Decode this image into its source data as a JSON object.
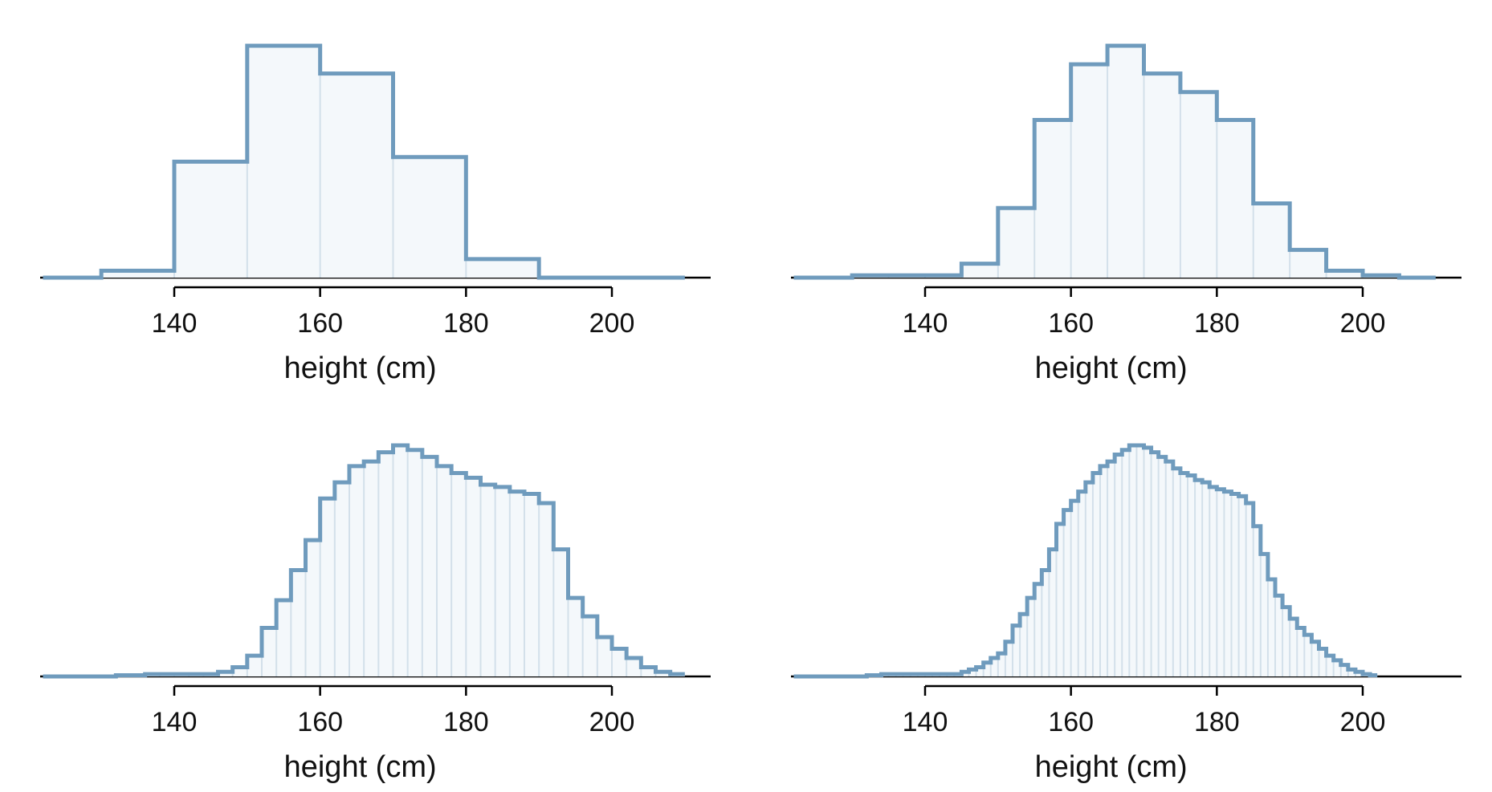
{
  "colors": {
    "outline": "#6f9bbd",
    "fill": "#f4f8fb",
    "bin_divider": "#d3e0ea",
    "axis": "#000000"
  },
  "chart_data": [
    {
      "type": "histogram",
      "xlabel": "height (cm)",
      "xticks": [
        140,
        160,
        180,
        200
      ],
      "xlim": [
        122,
        210
      ],
      "bin_width": 10,
      "bins_start": 120,
      "density_max": 1.0,
      "values": [
        0.0,
        0.03,
        0.5,
        1.0,
        0.88,
        0.52,
        0.08,
        0.0,
        0.0
      ],
      "grid": false,
      "y_axis_shown": false
    },
    {
      "type": "histogram",
      "xlabel": "height (cm)",
      "xticks": [
        140,
        160,
        180,
        200
      ],
      "xlim": [
        122,
        210
      ],
      "bin_width": 5,
      "bins_start": 120,
      "density_max": 1.0,
      "values": [
        0.0,
        0.0,
        0.01,
        0.01,
        0.01,
        0.06,
        0.3,
        0.68,
        0.92,
        1.0,
        0.88,
        0.8,
        0.68,
        0.32,
        0.12,
        0.03,
        0.01,
        0.0
      ],
      "grid": false,
      "y_axis_shown": false
    },
    {
      "type": "histogram",
      "xlabel": "height (cm)",
      "xticks": [
        140,
        160,
        180,
        200
      ],
      "xlim": [
        122,
        210
      ],
      "bin_width": 2,
      "bins_start": 120,
      "density_max": 1.0,
      "values": [
        0.0,
        0.0,
        0.0,
        0.0,
        0.0,
        0.0,
        0.005,
        0.005,
        0.01,
        0.01,
        0.01,
        0.01,
        0.01,
        0.02,
        0.04,
        0.09,
        0.21,
        0.33,
        0.46,
        0.59,
        0.77,
        0.84,
        0.91,
        0.93,
        0.97,
        1.0,
        0.98,
        0.95,
        0.91,
        0.88,
        0.86,
        0.83,
        0.82,
        0.8,
        0.79,
        0.75,
        0.55,
        0.34,
        0.26,
        0.17,
        0.12,
        0.08,
        0.04,
        0.02,
        0.01,
        0.005
      ],
      "grid": false,
      "y_axis_shown": false
    },
    {
      "type": "histogram",
      "xlabel": "height (cm)",
      "xticks": [
        140,
        160,
        180,
        200
      ],
      "xlim": [
        122,
        210
      ],
      "bin_width": 1,
      "bins_start": 120,
      "density_max": 1.0,
      "values": [
        0.0,
        0.0,
        0.0,
        0.0,
        0.0,
        0.0,
        0.0,
        0.0,
        0.0,
        0.0,
        0.0,
        0.0,
        0.005,
        0.005,
        0.01,
        0.01,
        0.01,
        0.01,
        0.01,
        0.01,
        0.01,
        0.01,
        0.01,
        0.01,
        0.01,
        0.02,
        0.03,
        0.04,
        0.06,
        0.08,
        0.1,
        0.15,
        0.22,
        0.27,
        0.34,
        0.4,
        0.46,
        0.55,
        0.66,
        0.72,
        0.76,
        0.8,
        0.84,
        0.88,
        0.91,
        0.93,
        0.96,
        0.98,
        1.0,
        1.0,
        0.99,
        0.97,
        0.95,
        0.93,
        0.9,
        0.88,
        0.87,
        0.85,
        0.84,
        0.82,
        0.81,
        0.8,
        0.79,
        0.78,
        0.75,
        0.65,
        0.53,
        0.42,
        0.35,
        0.3,
        0.25,
        0.21,
        0.18,
        0.15,
        0.12,
        0.09,
        0.07,
        0.05,
        0.03,
        0.02,
        0.01,
        0.005
      ],
      "grid": false,
      "y_axis_shown": false
    }
  ]
}
